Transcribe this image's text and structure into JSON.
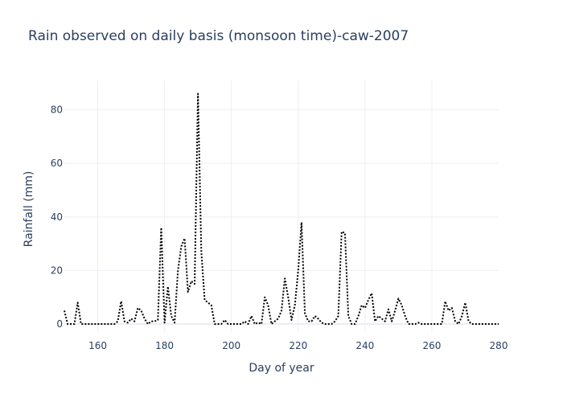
{
  "chart_data": {
    "type": "line",
    "title": "Rain observed on daily basis (monsoon time)-caw-2007",
    "xlabel": "Day of year",
    "ylabel": "Rainfall (mm)",
    "xlim": [
      150,
      280
    ],
    "ylim": [
      -3,
      91
    ],
    "x_ticks": [
      160,
      180,
      200,
      220,
      240,
      260,
      280
    ],
    "y_ticks": [
      0,
      20,
      40,
      60,
      80
    ],
    "grid": true,
    "line_style": "dotted",
    "line_color": "#000000",
    "series": [
      {
        "x": [
          150,
          151,
          152,
          153,
          154,
          155,
          156,
          157,
          158,
          159,
          160,
          161,
          162,
          163,
          164,
          165,
          166,
          167,
          168,
          169,
          170,
          171,
          172,
          173,
          174,
          175,
          176,
          177,
          178,
          179,
          180,
          181,
          182,
          183,
          184,
          185,
          186,
          187,
          188,
          189,
          190,
          191,
          192,
          193,
          194,
          195,
          196,
          197,
          198,
          199,
          200,
          201,
          202,
          203,
          204,
          205,
          206,
          207,
          208,
          209,
          210,
          211,
          212,
          213,
          214,
          215,
          216,
          217,
          218,
          219,
          220,
          221,
          222,
          223,
          224,
          225,
          226,
          227,
          228,
          229,
          230,
          231,
          232,
          233,
          234,
          235,
          236,
          237,
          238,
          239,
          240,
          241,
          242,
          243,
          244,
          245,
          246,
          247,
          248,
          249,
          250,
          251,
          252,
          253,
          254,
          255,
          256,
          257,
          258,
          259,
          260,
          261,
          262,
          263,
          264,
          265,
          266,
          267,
          268,
          269,
          270,
          271,
          272,
          273,
          274,
          275,
          276,
          277,
          278,
          279,
          280
        ],
        "values": [
          5,
          0,
          0,
          0,
          8,
          0,
          0,
          0,
          0,
          0,
          0,
          0,
          0,
          0,
          0,
          0,
          1,
          8.5,
          1,
          0.5,
          2,
          1,
          6,
          5,
          2,
          0,
          1,
          1,
          1.5,
          36,
          0.5,
          14,
          3,
          0.5,
          20,
          29,
          32,
          12,
          16,
          15,
          86,
          27,
          9,
          8,
          7,
          0,
          0,
          0,
          1.5,
          0,
          0,
          0,
          0,
          0,
          1,
          0,
          3,
          0,
          0.5,
          0,
          10,
          7,
          0,
          1,
          2,
          5,
          17,
          10,
          1.5,
          7,
          20,
          38,
          4,
          1,
          1,
          3,
          2,
          0.5,
          0,
          0,
          0,
          1,
          3,
          34.5,
          34,
          3,
          0,
          0,
          3,
          7,
          6,
          9,
          11.5,
          1,
          3,
          2,
          1,
          5.5,
          1,
          5,
          9.5,
          7,
          3,
          0,
          0,
          0,
          0.5,
          0,
          0,
          0,
          0,
          0,
          0,
          0,
          8.5,
          5,
          6,
          1,
          0,
          3,
          8,
          1,
          0,
          0,
          0,
          0,
          0,
          0,
          0,
          0,
          0
        ]
      }
    ]
  }
}
